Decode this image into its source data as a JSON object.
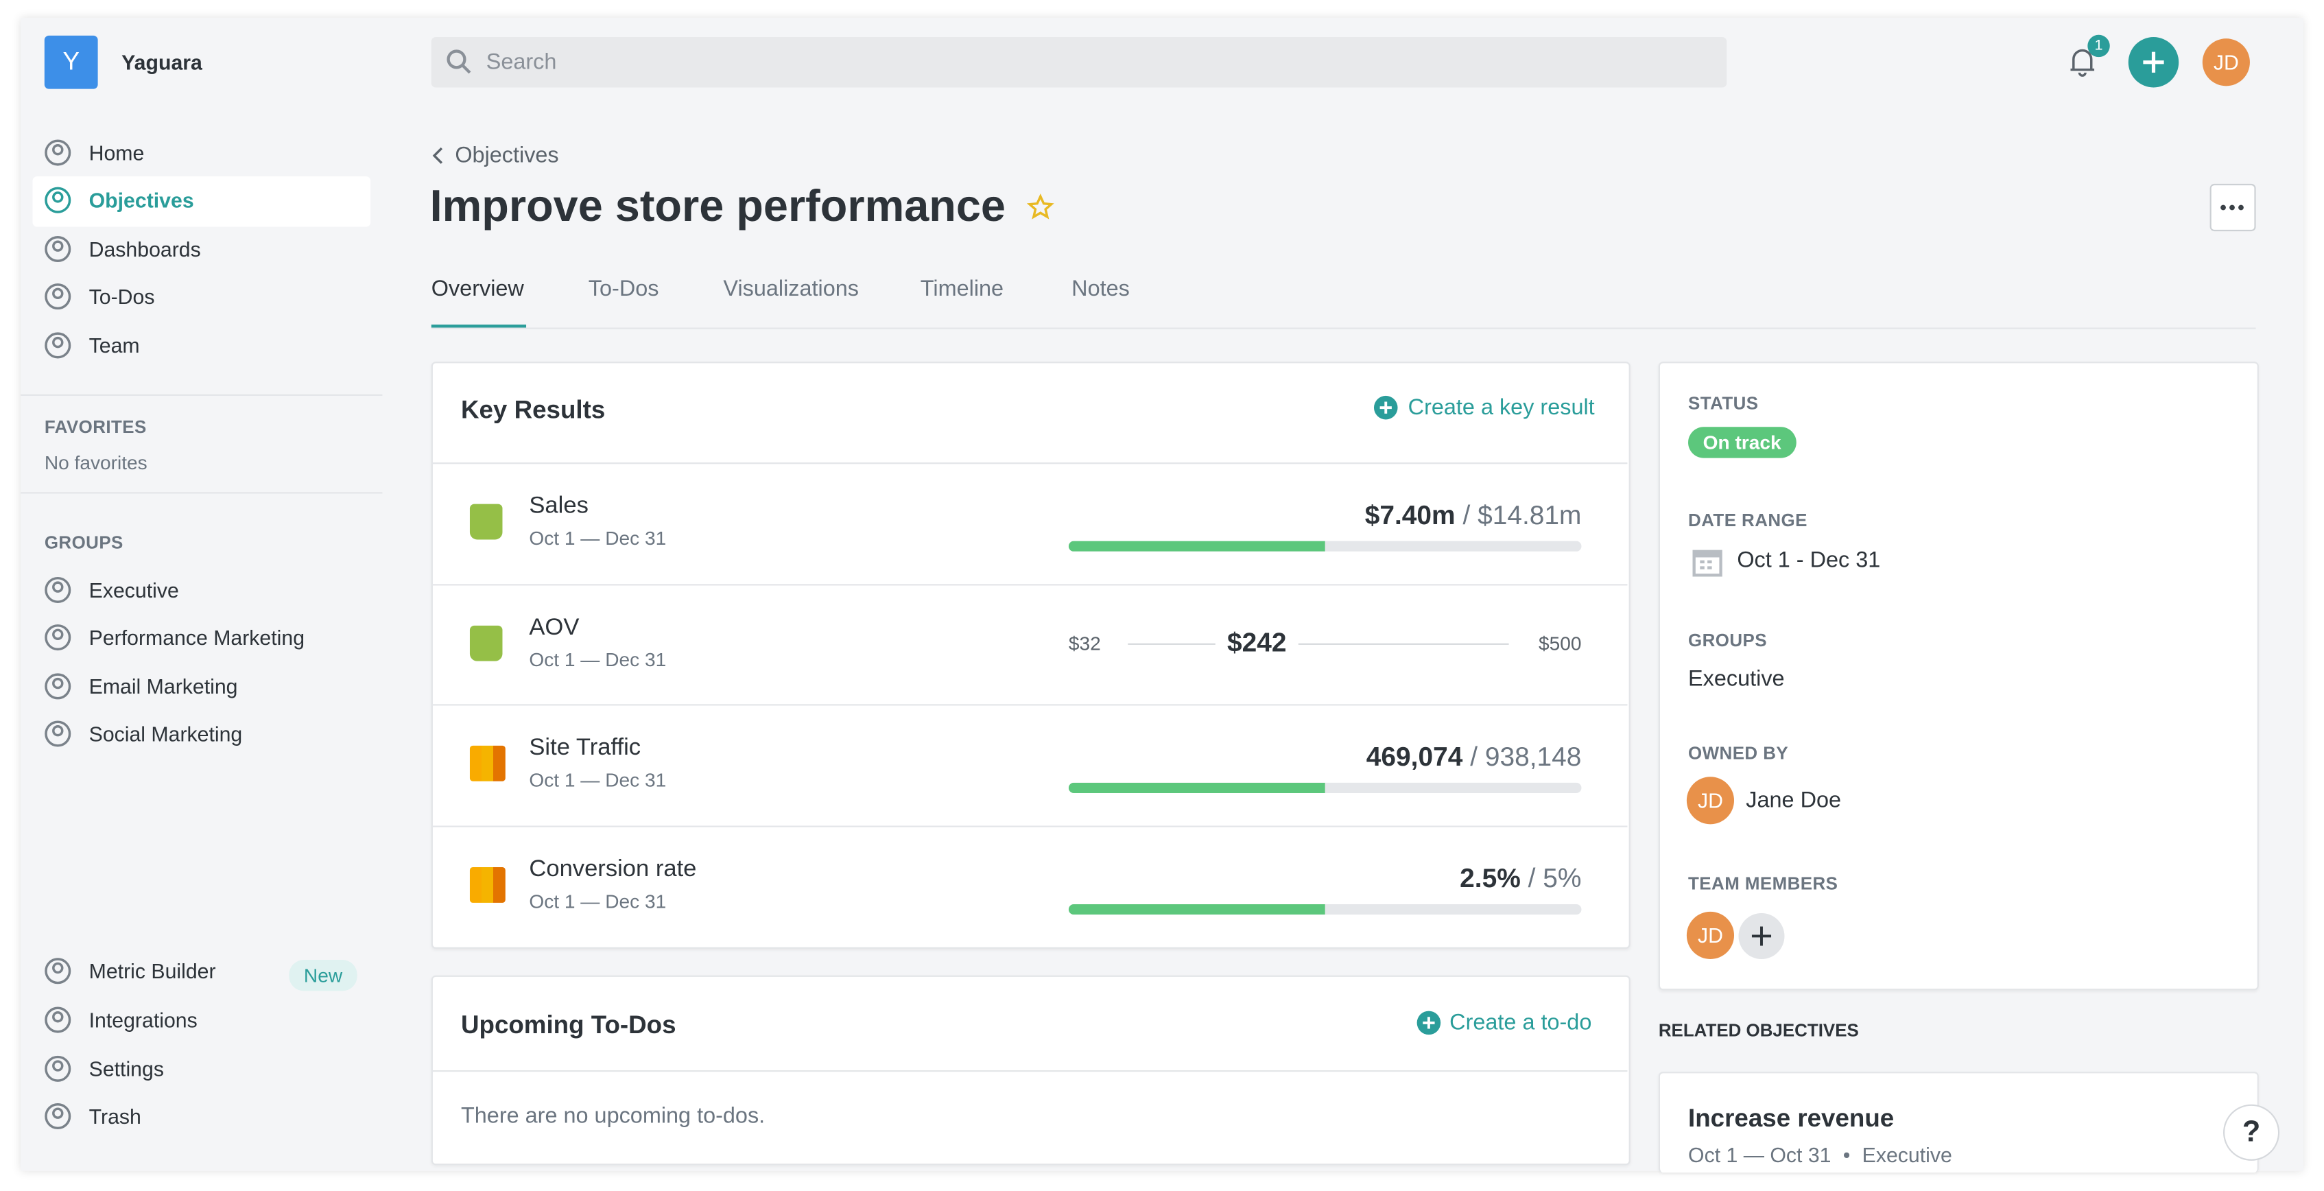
{
  "app": {
    "name": "Yaguara",
    "logo_letter": "Y"
  },
  "search": {
    "placeholder": "Search"
  },
  "header": {
    "notifications": "1",
    "avatar": "JD"
  },
  "sidebar": {
    "nav": [
      "Home",
      "Objectives",
      "Dashboards",
      "To-Dos",
      "Team"
    ],
    "favorites": {
      "title": "FAVORITES",
      "empty": "No favorites"
    },
    "groups": {
      "title": "GROUPS",
      "items": [
        "Executive",
        "Performance Marketing",
        "Email Marketing",
        "Social Marketing"
      ]
    },
    "bottom": [
      {
        "label": "Metric Builder",
        "badge": "New"
      },
      {
        "label": "Integrations"
      },
      {
        "label": "Settings"
      },
      {
        "label": "Trash"
      }
    ]
  },
  "breadcrumb": "Objectives",
  "title": "Improve store performance",
  "tabs": [
    "Overview",
    "To-Dos",
    "Visualizations",
    "Timeline",
    "Notes"
  ],
  "key_results": {
    "title": "Key Results",
    "action": "Create a key result",
    "separator": "/",
    "items": [
      {
        "name": "Sales",
        "dates": "Oct 1 — Dec 31",
        "current": "$7.40m",
        "target": "$14.81m"
      },
      {
        "name": "AOV",
        "dates": "Oct 1 — Dec 31",
        "min": "$32",
        "current": "$242",
        "max": "$500"
      },
      {
        "name": "Site Traffic",
        "dates": "Oct 1 — Dec 31",
        "current": "469,074",
        "target": "938,148"
      },
      {
        "name": "Conversion rate",
        "dates": "Oct 1 — Dec 31",
        "current": "2.5%",
        "target": "5%"
      }
    ]
  },
  "todos": {
    "title": "Upcoming To-Dos",
    "action": "Create a to-do",
    "empty": "There are no upcoming to-dos."
  },
  "details": {
    "status": {
      "label": "STATUS",
      "value": "On track"
    },
    "date_range": {
      "label": "DATE RANGE",
      "value": "Oct 1 - Dec 31"
    },
    "groups": {
      "label": "GROUPS",
      "value": "Executive"
    },
    "owner": {
      "label": "OWNED BY",
      "avatar": "JD",
      "name": "Jane Doe"
    },
    "team": {
      "label": "TEAM MEMBERS",
      "avatar": "JD"
    }
  },
  "related": {
    "title": "RELATED OBJECTIVES",
    "items": [
      {
        "title": "Increase revenue",
        "dates": "Oct 1 — Oct 31",
        "group": "Executive"
      }
    ]
  },
  "help": "?"
}
